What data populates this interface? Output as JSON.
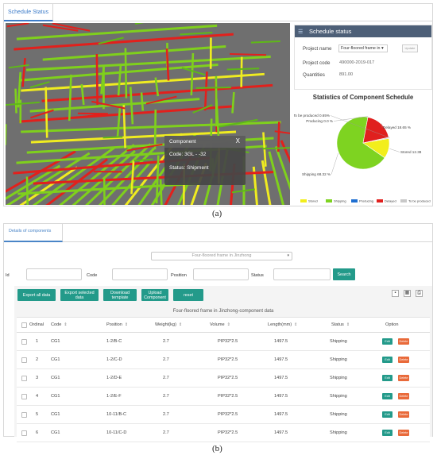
{
  "panel_a": {
    "tab_label": "Schedule Status",
    "popup": {
      "title": "Component",
      "close": "X",
      "code_line": "Code: 3GL - -32",
      "status_line": "Status: Shipment"
    },
    "schedule": {
      "header": "Schedule status",
      "header_icon": "sliders-icon",
      "project_name_label": "Project name",
      "project_name_value": "Four-floored frame in",
      "update_button": "Update",
      "project_code_label": "Project code",
      "project_code_value": "490000-2019-017",
      "quantities_label": "Quantities",
      "quantities_value": "891.00"
    },
    "stats_title": "Statistics of Component Schedule",
    "caption": "(a)"
  },
  "chart_data": {
    "type": "pie",
    "title": "Statistics of Component Schedule",
    "slices": [
      {
        "name": "Stored",
        "value": 12.38,
        "label": "Stored 12.38",
        "color": "#f2ee1c"
      },
      {
        "name": "Shipping",
        "value": 68.32,
        "label": "Shipping 68.32 %",
        "color": "#7ed321"
      },
      {
        "name": "Producing",
        "value": 0.0,
        "label": "Producing 0.0 %",
        "color": "#1f6fd1"
      },
      {
        "name": "Delayed",
        "value": 18.65,
        "label": "Delayed 18.65 %",
        "color": "#e0201e"
      },
      {
        "name": "To be produced",
        "value": 0.65,
        "label": "To be produced 0.65%",
        "color": "#c8c8c8"
      }
    ],
    "legend": [
      "Stored",
      "Shipping",
      "Producing",
      "Delayed",
      "To be produced"
    ],
    "legend_position": "bottom"
  },
  "panel_b": {
    "tab_label": "Details of components",
    "project_select": "Four-floored frame in Jinzhong",
    "filters": {
      "id_label": "Id",
      "code_label": "Code",
      "position_label": "Position",
      "status_label": "Status",
      "search_button": "Search"
    },
    "buttons": {
      "export_all": "Export all data",
      "export_selected": "Export selected data",
      "download_template": "Download template",
      "upload_component": "Upload Component",
      "reset": "reset"
    },
    "toolbar_icons": [
      "print-icon",
      "columns-icon",
      "printer-icon"
    ],
    "table_caption": "Four-floored frame in Jinzhong-component data",
    "columns": [
      "Ordinal",
      "Code",
      "Position",
      "Weight(kg)",
      "Volume",
      "Length(mm)",
      "Status",
      "Option"
    ],
    "rows": [
      {
        "ordinal": "1",
        "code": "CG1",
        "position": "1-2/B-C",
        "weight": "2.7",
        "volume": "PIP32*2.5",
        "length": "1497.5",
        "status": "Shipping"
      },
      {
        "ordinal": "2",
        "code": "CG1",
        "position": "1-2/C-D",
        "weight": "2.7",
        "volume": "PIP32*2.5",
        "length": "1497.5",
        "status": "Shipping"
      },
      {
        "ordinal": "3",
        "code": "CG1",
        "position": "1-2/D-E",
        "weight": "2.7",
        "volume": "PIP32*2.5",
        "length": "1497.5",
        "status": "Shipping"
      },
      {
        "ordinal": "4",
        "code": "CG1",
        "position": "1-2/E-F",
        "weight": "2.7",
        "volume": "PIP32*2.5",
        "length": "1497.5",
        "status": "Shipping"
      },
      {
        "ordinal": "5",
        "code": "CG1",
        "position": "10-11/B-C",
        "weight": "2.7",
        "volume": "PIP32*2.5",
        "length": "1497.5",
        "status": "Shipping"
      },
      {
        "ordinal": "6",
        "code": "CG1",
        "position": "10-11/C-D",
        "weight": "2.7",
        "volume": "PIP32*2.5",
        "length": "1497.5",
        "status": "Shipping"
      }
    ],
    "edit_label": "Edit",
    "delete_label": "Delete",
    "caption": "(b)"
  },
  "colors": {
    "accent_teal": "#239a8a",
    "delete_orange": "#e96a3a",
    "tab_blue": "#3d7cc9",
    "header_slate": "#4d5f77"
  }
}
